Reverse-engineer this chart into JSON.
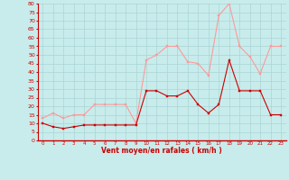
{
  "hours": [
    0,
    1,
    2,
    3,
    4,
    5,
    6,
    7,
    8,
    9,
    10,
    11,
    12,
    13,
    14,
    15,
    16,
    17,
    18,
    19,
    20,
    21,
    22,
    23
  ],
  "vent_moyen": [
    10,
    8,
    7,
    8,
    9,
    9,
    9,
    9,
    9,
    9,
    29,
    29,
    26,
    26,
    29,
    21,
    16,
    21,
    47,
    29,
    29,
    29,
    15,
    15
  ],
  "rafales": [
    13,
    16,
    13,
    15,
    15,
    21,
    21,
    21,
    21,
    10,
    47,
    50,
    55,
    55,
    46,
    45,
    38,
    73,
    80,
    55,
    49,
    39,
    55,
    55
  ],
  "bg_color": "#c8ecec",
  "grid_color": "#aad4d4",
  "line_moyen_color": "#cc0000",
  "line_rafales_color": "#ff9999",
  "marker_color_moyen": "#cc0000",
  "marker_color_rafales": "#ff9999",
  "xlabel": "Vent moyen/en rafales ( km/h )",
  "xlabel_color": "#cc0000",
  "tick_color": "#cc0000",
  "axis_color": "#cc0000",
  "ylim": [
    0,
    80
  ],
  "ytick_labels": [
    "0",
    "5",
    "10",
    "15",
    "20",
    "25",
    "30",
    "35",
    "40",
    "45",
    "50",
    "55",
    "60",
    "65",
    "70",
    "75",
    "80"
  ],
  "ytick_vals": [
    0,
    5,
    10,
    15,
    20,
    25,
    30,
    35,
    40,
    45,
    50,
    55,
    60,
    65,
    70,
    75,
    80
  ]
}
